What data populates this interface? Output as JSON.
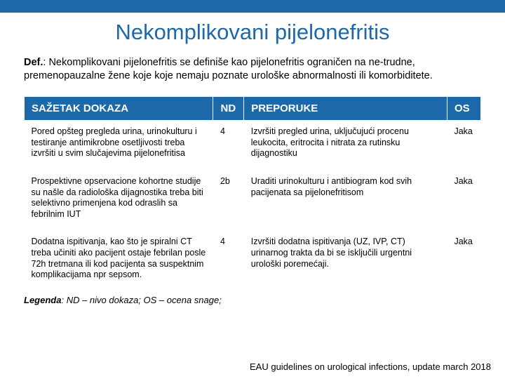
{
  "colors": {
    "accent": "#1c68a8",
    "header_bg": "#1c68a8",
    "header_text": "#ffffff",
    "body_text": "#000000",
    "background": "#ffffff"
  },
  "title": "Nekomplikovani pijelonefritis",
  "definition": {
    "label": "Def.",
    "text": ": Nekomplikovani pijelonefritis se definiše kao pijelonefritis ograničen na ne-trudne, premenopauzalne žene koje koje nemaju poznate urološke abnormalnosti ili komorbiditete."
  },
  "table": {
    "headers": {
      "summary": "SAŽETAK DOKAZA",
      "nd": "ND",
      "rec": "PREPORUKE",
      "os": "OS"
    },
    "rows": [
      {
        "summary": "Pored opšteg pregleda urina, urinokulturu i testiranje antimikrobne osetljivosti treba izvršiti u svim slučajevima pijelonefritisa",
        "nd": "4",
        "rec": "Izvršiti pregled urina, uključujući procenu leukocita, eritrocita i nitrata za rutinsku dijagnostiku",
        "os": "Jaka"
      },
      {
        "summary": "Prospektivne opservacione kohortne studije su našle da radiološka dijagnostika treba biti selektivno primenjena kod odraslih sa febrilnim IUT",
        "nd": "2b",
        "rec": "Uraditi urinokulturu i antibiogram kod svih pacijenata sa pijelonefritisom",
        "os": "Jaka"
      },
      {
        "summary": "Dodatna ispitivanja, kao što je spiralni CT treba učiniti ako pacijent ostaje febrilan posle 72h tretmana ili kod pacijenta sa suspektnim komplikacijama npr sepsom.",
        "nd": "4",
        "rec": "Izvršiti dodatna ispitivanja (UZ, IVP, CT) urinarnog trakta da bi se isključili urgentni urološki poremećaji.",
        "os": "Jaka"
      }
    ]
  },
  "legend": {
    "label": "Legenda",
    "text": ": ND – nivo dokaza; OS – ocena snage;"
  },
  "source": "EAU guidelines on urological infections, update march 2018"
}
